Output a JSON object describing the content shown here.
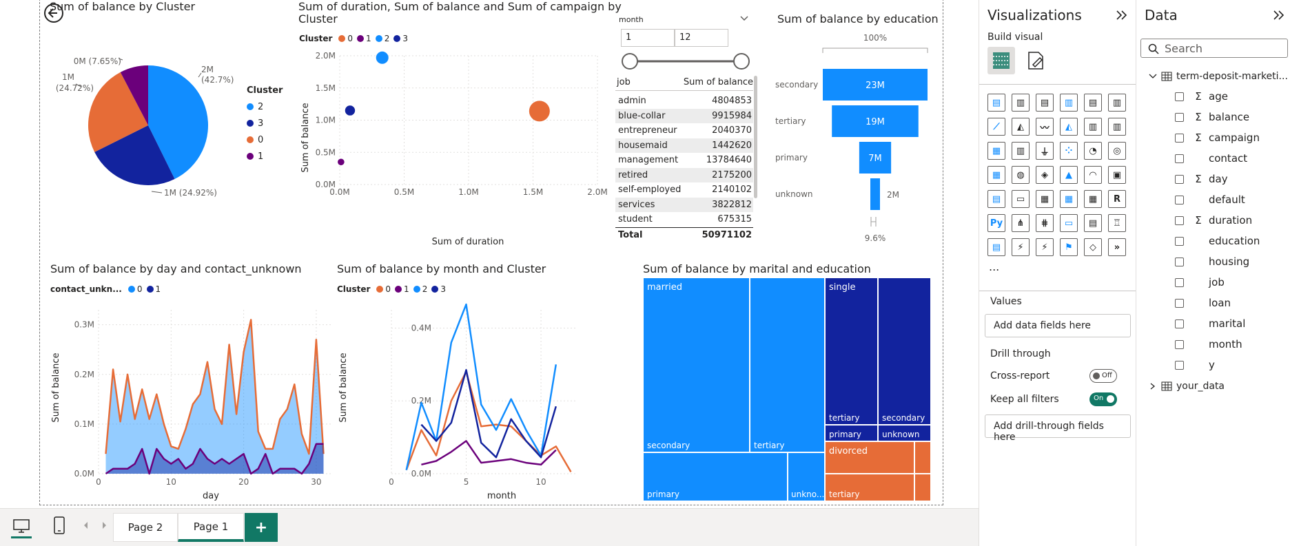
{
  "pie": {
    "title": "Sum of balance by Cluster",
    "legend_title": "Cluster",
    "legend": [
      {
        "label": "2",
        "color": "#118DFF"
      },
      {
        "label": "3",
        "color": "#12239E"
      },
      {
        "label": "0",
        "color": "#E66C37"
      },
      {
        "label": "1",
        "color": "#6B007B"
      }
    ],
    "labels": {
      "s2a": "2M",
      "s2b": "(42.7%)",
      "s3": "1M (24.92%)",
      "s0a": "1M",
      "s0b": "(24.72%)",
      "s1": "0M (7.65%)"
    }
  },
  "scatter": {
    "title_line1": "Sum of duration, Sum of balance and Sum of campaign by",
    "title_line2": "Cluster",
    "legend_title": "Cluster",
    "legend": [
      {
        "label": "0",
        "color": "#E66C37"
      },
      {
        "label": "1",
        "color": "#6B007B"
      },
      {
        "label": "2",
        "color": "#118DFF"
      },
      {
        "label": "3",
        "color": "#12239E"
      }
    ],
    "xlabel": "Sum of duration",
    "ylabel": "Sum of balance",
    "xticks": [
      "0.0M",
      "0.5M",
      "1.0M",
      "1.5M",
      "2.0M"
    ],
    "yticks": [
      "0.0M",
      "0.5M",
      "1.0M",
      "1.5M",
      "2.0M"
    ]
  },
  "slicer": {
    "title": "month",
    "from": "1",
    "to": "12"
  },
  "job_table": {
    "col1": "job",
    "col2": "Sum of balance",
    "rows": [
      {
        "job": "admin",
        "value": "4804853"
      },
      {
        "job": "blue-collar",
        "value": "9915984"
      },
      {
        "job": "entrepreneur",
        "value": "2040370"
      },
      {
        "job": "housemaid",
        "value": "1442620"
      },
      {
        "job": "management",
        "value": "13784640"
      },
      {
        "job": "retired",
        "value": "2175200"
      },
      {
        "job": "self-employed",
        "value": "2140102"
      },
      {
        "job": "services",
        "value": "3822812"
      },
      {
        "job": "student",
        "value": "675315"
      }
    ],
    "total_label": "Total",
    "total_value": "50971102"
  },
  "funnel": {
    "title": "Sum of balance by education",
    "top_pct": "100%",
    "bottom_pct": "9.6%",
    "categories": [
      "secondary",
      "tertiary",
      "primary",
      "unknown"
    ],
    "value_labels": [
      "23M",
      "19M",
      "7M",
      "2M"
    ]
  },
  "area": {
    "title": "Sum of balance by day and contact_unknown",
    "legend_title": "contact_unkn...",
    "legend": [
      {
        "label": "0",
        "color": "#118DFF"
      },
      {
        "label": "1",
        "color": "#12239E"
      }
    ],
    "xlabel": "day",
    "ylabel": "Sum of balance",
    "xticks": [
      "0",
      "10",
      "20",
      "30"
    ],
    "yticks": [
      "0.0M",
      "0.1M",
      "0.2M",
      "0.3M"
    ]
  },
  "line": {
    "title": "Sum of balance by month and Cluster",
    "legend_title": "Cluster",
    "legend": [
      {
        "label": "0",
        "color": "#E66C37"
      },
      {
        "label": "1",
        "color": "#6B007B"
      },
      {
        "label": "2",
        "color": "#118DFF"
      },
      {
        "label": "3",
        "color": "#12239E"
      }
    ],
    "xlabel": "month",
    "ylabel": "Sum of balance",
    "xticks": [
      "0",
      "5",
      "10"
    ],
    "yticks": [
      "0.0M",
      "0.2M",
      "0.4M"
    ]
  },
  "treemap": {
    "title": "Sum of balance by marital and education",
    "married": "married",
    "single": "single",
    "divorced": "divorced",
    "secondary": "secondary",
    "tertiary": "tertiary",
    "primary": "primary",
    "unknown_short": "unkno...",
    "unknown": "unknown"
  },
  "chart_data": [
    {
      "type": "pie",
      "title": "Sum of balance by Cluster",
      "categories": [
        "2",
        "3",
        "0",
        "1"
      ],
      "values": [
        42.7,
        24.92,
        24.72,
        7.65
      ],
      "value_labels": [
        "2M (42.7%)",
        "1M (24.92%)",
        "1M (24.72%)",
        "0M (7.65%)"
      ],
      "legend": "right"
    },
    {
      "type": "scatter",
      "title": "Sum of duration, Sum of balance and Sum of campaign by Cluster",
      "xlabel": "Sum of duration",
      "ylabel": "Sum of balance",
      "xlim": [
        0,
        2.0
      ],
      "ylim": [
        0,
        2.0
      ],
      "series": [
        {
          "name": "0",
          "x": [
            1.55
          ],
          "y": [
            1.14
          ],
          "size": [
            1.0
          ]
        },
        {
          "name": "1",
          "x": [
            0.01
          ],
          "y": [
            0.35
          ],
          "size": [
            0.15
          ]
        },
        {
          "name": "2",
          "x": [
            0.33
          ],
          "y": [
            1.97
          ],
          "size": [
            0.5
          ]
        },
        {
          "name": "3",
          "x": [
            0.08
          ],
          "y": [
            1.15
          ],
          "size": [
            0.35
          ]
        }
      ]
    },
    {
      "type": "bar",
      "title": "Sum of balance by education",
      "categories": [
        "secondary",
        "tertiary",
        "primary",
        "unknown"
      ],
      "values": [
        23,
        19,
        7,
        2
      ],
      "value_labels": [
        "23M",
        "19M",
        "7M",
        "2M"
      ]
    },
    {
      "type": "area",
      "title": "Sum of balance by day and contact_unknown",
      "xlabel": "day",
      "ylabel": "Sum of balance",
      "ylim": [
        0,
        0.33
      ],
      "x": [
        1,
        2,
        3,
        4,
        5,
        6,
        7,
        8,
        9,
        10,
        11,
        12,
        13,
        14,
        15,
        16,
        17,
        18,
        19,
        20,
        21,
        22,
        23,
        24,
        25,
        26,
        27,
        28,
        29,
        30,
        31
      ],
      "series": [
        {
          "name": "0",
          "values": [
            0.04,
            0.21,
            0.105,
            0.2,
            0.11,
            0.17,
            0.11,
            0.16,
            0.1,
            0.055,
            0.05,
            0.09,
            0.14,
            0.16,
            0.225,
            0.13,
            0.1,
            0.26,
            0.12,
            0.245,
            0.31,
            0.085,
            0.05,
            0.05,
            0.11,
            0.13,
            0.18,
            0.08,
            0.04,
            0.27,
            0.04
          ]
        },
        {
          "name": "1",
          "values": [
            0.0,
            0.01,
            0.01,
            0.01,
            0.02,
            0.05,
            0.0,
            0.05,
            0.03,
            0.02,
            0.03,
            0.01,
            0.02,
            0.05,
            0.03,
            0.02,
            0.03,
            0.02,
            0.03,
            0.04,
            0.0,
            0.01,
            0.04,
            0.0,
            0.01,
            0.01,
            0.01,
            0.0,
            0.02,
            0.06,
            0.06
          ]
        }
      ]
    },
    {
      "type": "line",
      "title": "Sum of balance by month and Cluster",
      "xlabel": "month",
      "ylabel": "Sum of balance",
      "ylim": [
        0,
        0.45
      ],
      "x": [
        1,
        2,
        3,
        4,
        5,
        6,
        7,
        8,
        9,
        10,
        11,
        12
      ],
      "series": [
        {
          "name": "0",
          "values": [
            0.01,
            0.12,
            0.05,
            0.2,
            0.28,
            0.13,
            0.135,
            0.13,
            0.09,
            0.05,
            0.075,
            0.005
          ]
        },
        {
          "name": "1",
          "values": [
            null,
            0.025,
            0.035,
            0.06,
            0.09,
            0.03,
            0.035,
            0.04,
            0.03,
            0.025,
            0.065,
            null
          ]
        },
        {
          "name": "2",
          "values": [
            0.01,
            0.195,
            0.09,
            0.36,
            0.465,
            0.19,
            0.12,
            0.205,
            0.12,
            0.05,
            0.3,
            null
          ]
        },
        {
          "name": "3",
          "values": [
            null,
            0.135,
            0.09,
            0.14,
            0.285,
            0.085,
            0.045,
            0.15,
            0.09,
            0.045,
            0.185,
            null
          ]
        }
      ]
    },
    {
      "type": "heatmap",
      "title": "Sum of balance by marital and education",
      "groups": [
        {
          "name": "married",
          "children": [
            "secondary",
            "tertiary",
            "primary",
            "unkno..."
          ]
        },
        {
          "name": "single",
          "children": [
            "tertiary",
            "secondary",
            "primary",
            "unknown"
          ]
        },
        {
          "name": "divorced",
          "children": [
            "tertiary"
          ]
        }
      ]
    }
  ],
  "viz_pane": {
    "title": "Visualizations",
    "build_visual": "Build visual",
    "values_label": "Values",
    "add_data_fields": "Add data fields here",
    "drill_through": "Drill through",
    "cross_report": "Cross-report",
    "cross_report_state": "Off",
    "keep_all_filters": "Keep all filters",
    "keep_all_state": "On",
    "add_drill": "Add drill-through fields here",
    "more": "..."
  },
  "data_pane": {
    "title": "Data",
    "search_placeholder": "Search",
    "table_name": "term-deposit-marketi...",
    "fields": [
      {
        "name": "age",
        "sigma": true
      },
      {
        "name": "balance",
        "sigma": true
      },
      {
        "name": "campaign",
        "sigma": true
      },
      {
        "name": "contact",
        "sigma": false
      },
      {
        "name": "day",
        "sigma": true
      },
      {
        "name": "default",
        "sigma": false
      },
      {
        "name": "duration",
        "sigma": true
      },
      {
        "name": "education",
        "sigma": false
      },
      {
        "name": "housing",
        "sigma": false
      },
      {
        "name": "job",
        "sigma": false
      },
      {
        "name": "loan",
        "sigma": false
      },
      {
        "name": "marital",
        "sigma": false
      },
      {
        "name": "month",
        "sigma": false
      },
      {
        "name": "y",
        "sigma": false
      }
    ],
    "table2_name": "your_data"
  },
  "pages": {
    "page2": "Page 2",
    "page1": "Page 1",
    "add": "+"
  },
  "colors": {
    "c0": "#E66C37",
    "c1": "#6B007B",
    "c2": "#118DFF",
    "c3": "#12239E",
    "accent": "#117865"
  }
}
